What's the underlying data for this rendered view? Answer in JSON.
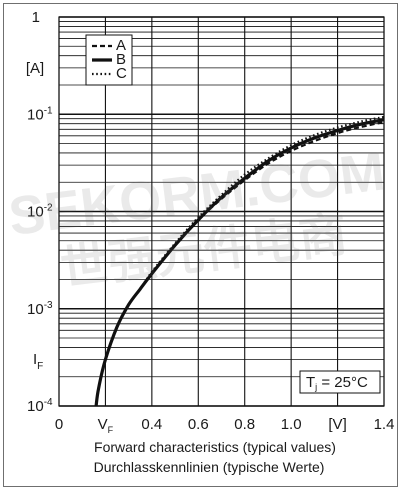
{
  "chart_data": {
    "type": "line",
    "x_scale": "linear",
    "y_scale": "log",
    "xlim": [
      0,
      1.4
    ],
    "ylim": [
      0.0001,
      1
    ],
    "x_ticks": [
      {
        "value": 0,
        "label": "0"
      },
      {
        "value": 0.2,
        "label": "V_F"
      },
      {
        "value": 0.4,
        "label": "0.4"
      },
      {
        "value": 0.6,
        "label": "0.6"
      },
      {
        "value": 0.8,
        "label": "0.8"
      },
      {
        "value": 1.0,
        "label": "1.0"
      },
      {
        "value": 1.2,
        "label": "[V]"
      },
      {
        "value": 1.4,
        "label": "1.4"
      }
    ],
    "y_ticks": [
      {
        "value": 1,
        "base": "1",
        "exp": ""
      },
      {
        "value": 0.1,
        "base": "10",
        "exp": "-1"
      },
      {
        "value": 0.01,
        "base": "10",
        "exp": "-2"
      },
      {
        "value": 0.001,
        "base": "10",
        "exp": "-3"
      },
      {
        "value": 0.0001,
        "base": "10",
        "exp": "-4"
      }
    ],
    "y_axis_labels": {
      "unit": "[A]",
      "symbol": "I",
      "symbol_sub": "F"
    },
    "grid": true,
    "legend_position": "top-left",
    "annotation": {
      "base": "T",
      "sub": "j",
      "rest": " = 25°C"
    },
    "caption": [
      "Forward characteristics (typical values)",
      "Durchlasskennlinien (typische Werte)"
    ],
    "series": [
      {
        "name": "A",
        "style": "dashed",
        "x": [
          0.16,
          0.17,
          0.2,
          0.25,
          0.3,
          0.35,
          0.4,
          0.5,
          0.6,
          0.7,
          0.8,
          0.9,
          1.0,
          1.1,
          1.2,
          1.3,
          1.4
        ],
        "y": [
          0.0001,
          0.00015,
          0.0003,
          0.00065,
          0.0011,
          0.0016,
          0.0023,
          0.0045,
          0.0082,
          0.0135,
          0.021,
          0.031,
          0.042,
          0.053,
          0.064,
          0.074,
          0.083
        ]
      },
      {
        "name": "B",
        "style": "solid",
        "x": [
          0.16,
          0.17,
          0.2,
          0.25,
          0.3,
          0.35,
          0.4,
          0.5,
          0.6,
          0.7,
          0.8,
          0.9,
          1.0,
          1.1,
          1.2,
          1.3,
          1.4
        ],
        "y": [
          0.0001,
          0.00015,
          0.0003,
          0.00065,
          0.0011,
          0.0016,
          0.0023,
          0.0045,
          0.0082,
          0.014,
          0.022,
          0.033,
          0.045,
          0.057,
          0.068,
          0.079,
          0.088
        ]
      },
      {
        "name": "C",
        "style": "dotted",
        "x": [
          0.16,
          0.17,
          0.2,
          0.25,
          0.3,
          0.35,
          0.4,
          0.5,
          0.6,
          0.7,
          0.8,
          0.9,
          1.0,
          1.1,
          1.2,
          1.3,
          1.4
        ],
        "y": [
          0.0001,
          0.00015,
          0.0003,
          0.00066,
          0.0011,
          0.0016,
          0.0024,
          0.0047,
          0.0087,
          0.0148,
          0.024,
          0.035,
          0.048,
          0.061,
          0.073,
          0.084,
          0.094
        ]
      }
    ],
    "colors": {
      "line": "#111111",
      "grid": "#111111",
      "watermark": "#666666"
    }
  },
  "watermark": {
    "line1": "SEKORM.COM",
    "line2": "世强元件电商"
  }
}
